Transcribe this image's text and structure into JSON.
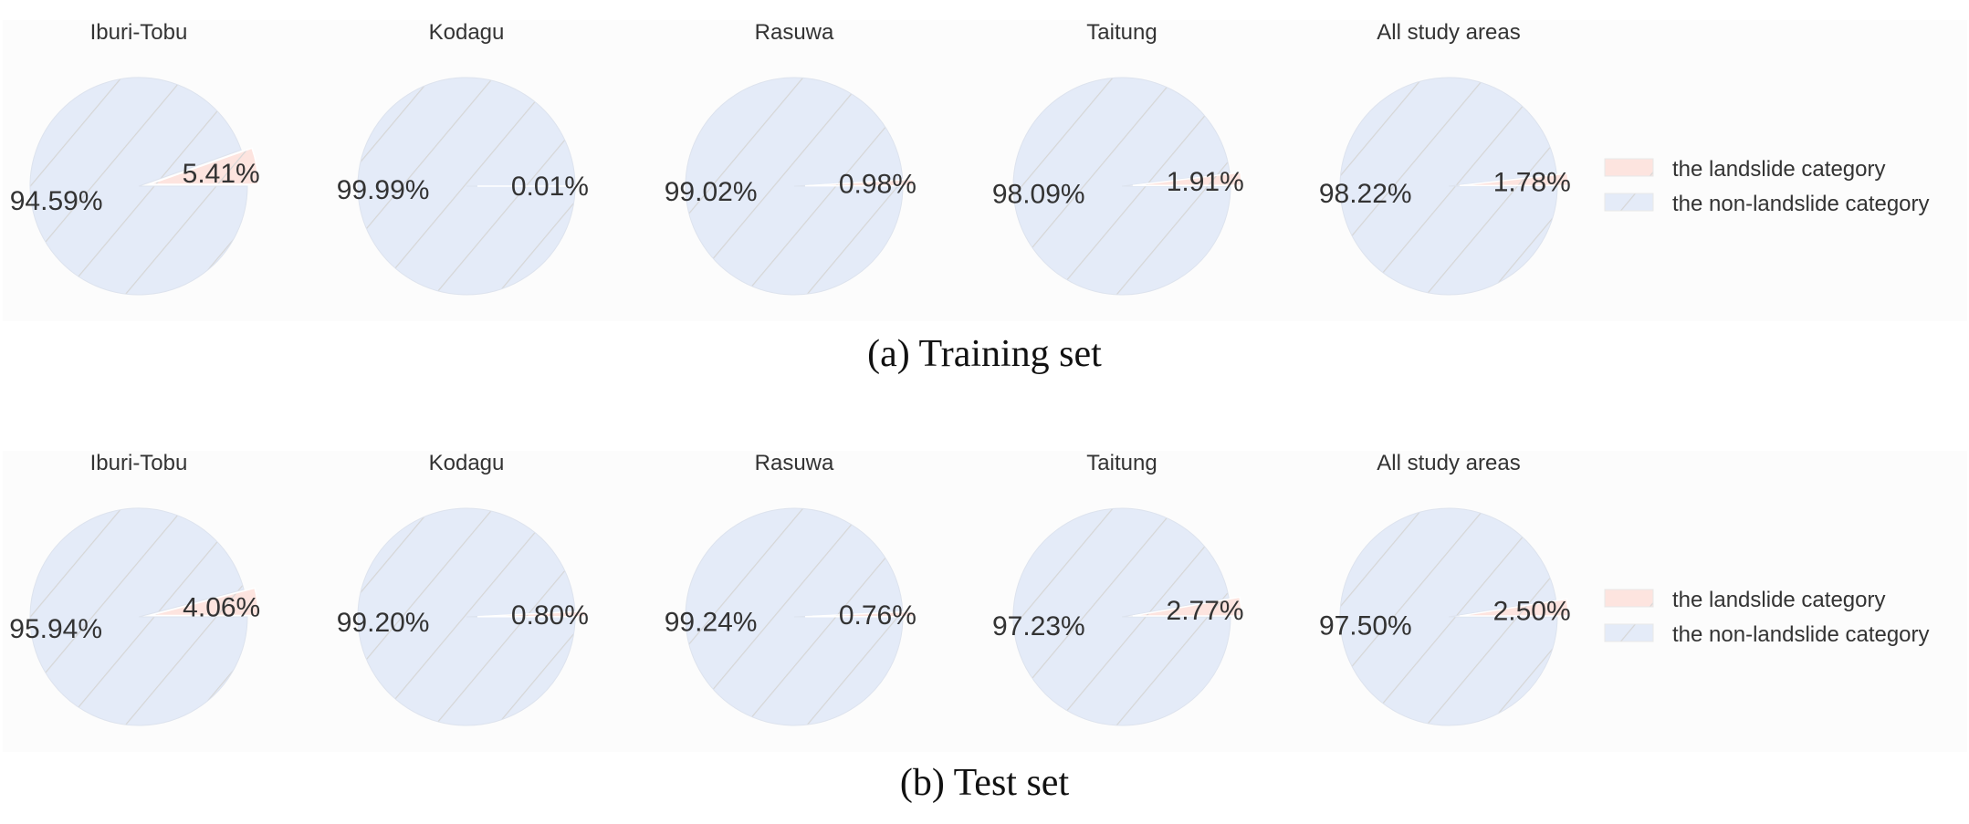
{
  "figure": {
    "rows": [
      {
        "caption": "(a) Training set"
      },
      {
        "caption": "(b) Test set"
      }
    ],
    "legend": {
      "items": [
        {
          "label": "the landslide category",
          "color": "#fde4df"
        },
        {
          "label": "the non-landslide category",
          "color": "#e4ebf8"
        }
      ]
    },
    "colors": {
      "landslide": "#fde4df",
      "non_landslide": "#e4ebf8",
      "hatch": "#d6d6d6",
      "edge": "#ffffff",
      "text": "#333333"
    }
  },
  "chart_data": [
    {
      "type": "pie",
      "title": "(a) Training set",
      "legend": [
        "the landslide category",
        "the non-landslide category"
      ],
      "legend_position": "right",
      "hatch": "/",
      "explode_landslide": true,
      "pies": [
        {
          "title": "Iburi-Tobu",
          "landslide": 5.41,
          "non_landslide": 94.59,
          "labels": [
            "5.41%",
            "94.59%"
          ]
        },
        {
          "title": "Kodagu",
          "landslide": 0.01,
          "non_landslide": 99.99,
          "labels": [
            "0.01%",
            "99.99%"
          ]
        },
        {
          "title": "Rasuwa",
          "landslide": 0.98,
          "non_landslide": 99.02,
          "labels": [
            "0.98%",
            "99.02%"
          ]
        },
        {
          "title": "Taitung",
          "landslide": 1.91,
          "non_landslide": 98.09,
          "labels": [
            "1.91%",
            "98.09%"
          ]
        },
        {
          "title": "All study areas",
          "landslide": 1.78,
          "non_landslide": 98.22,
          "labels": [
            "1.78%",
            "98.22%"
          ]
        }
      ]
    },
    {
      "type": "pie",
      "title": "(b) Test set",
      "legend": [
        "the landslide category",
        "the non-landslide category"
      ],
      "legend_position": "right",
      "hatch": "/",
      "explode_landslide": true,
      "pies": [
        {
          "title": "Iburi-Tobu",
          "landslide": 4.06,
          "non_landslide": 95.94,
          "labels": [
            "4.06%",
            "95.94%"
          ]
        },
        {
          "title": "Kodagu",
          "landslide": 0.8,
          "non_landslide": 99.2,
          "labels": [
            "0.80%",
            "99.20%"
          ]
        },
        {
          "title": "Rasuwa",
          "landslide": 0.76,
          "non_landslide": 99.24,
          "labels": [
            "0.76%",
            "99.24%"
          ]
        },
        {
          "title": "Taitung",
          "landslide": 2.77,
          "non_landslide": 97.23,
          "labels": [
            "2.77%",
            "97.23%"
          ]
        },
        {
          "title": "All study areas",
          "landslide": 2.5,
          "non_landslide": 97.5,
          "labels": [
            "2.50%",
            "97.50%"
          ]
        }
      ]
    }
  ]
}
